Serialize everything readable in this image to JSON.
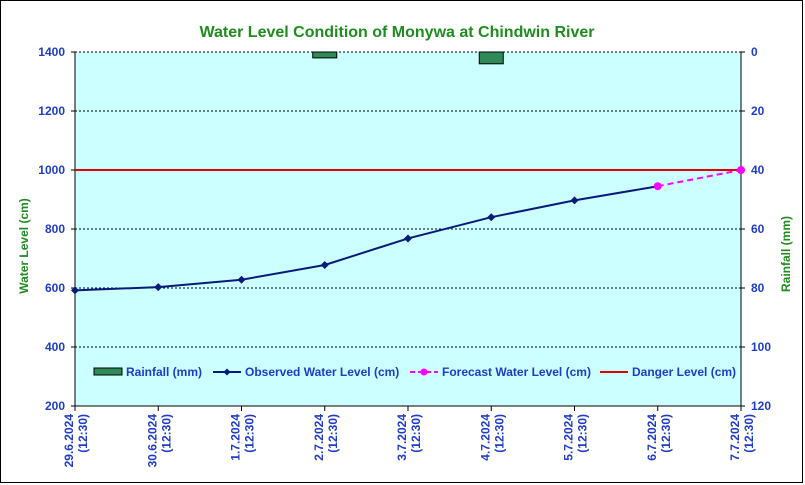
{
  "chart_data": {
    "type": "line",
    "title": "Water Level Condition of Monywa at Chindwin River",
    "ylabel": "Water Level (cm)",
    "y2label": "Rainfall (mm)",
    "ylim": [
      200,
      1400
    ],
    "y2lim": [
      0,
      120
    ],
    "y2_inverted": true,
    "yticks": [
      "1400",
      "1200",
      "1000",
      "800",
      "600",
      "400",
      "200"
    ],
    "y2ticks": [
      "0",
      "20",
      "40",
      "60",
      "80",
      "100",
      "120"
    ],
    "categories": [
      [
        "29.6.2024",
        "(12:30)"
      ],
      [
        "30.6.2024",
        "(12:30)"
      ],
      [
        "1.7.2024",
        "(12:30)"
      ],
      [
        "2.7.2024",
        "(12:30)"
      ],
      [
        "3.7.2024",
        "(12:30)"
      ],
      [
        "4.7.2024",
        "(12:30)"
      ],
      [
        "5.7.2024",
        "(12:30)"
      ],
      [
        "6.7.2024",
        "(12:30)"
      ],
      [
        "7.7.2024",
        "(12:30)"
      ]
    ],
    "series": [
      {
        "name": "Rainfall (mm)",
        "kind": "bar",
        "axis": "right",
        "color": "#2e8b57",
        "values": [
          null,
          null,
          null,
          2,
          null,
          4,
          null,
          null,
          null
        ]
      },
      {
        "name": "Observed Water Level (cm)",
        "kind": "line",
        "color": "#0a1a78",
        "values": [
          592,
          603,
          628,
          678,
          768,
          840,
          897,
          945,
          null
        ]
      },
      {
        "name": "Forecast Water Level (cm)",
        "kind": "dashed",
        "color": "#ff00ff",
        "values": [
          null,
          null,
          null,
          null,
          null,
          null,
          null,
          945,
          1000
        ]
      },
      {
        "name": "Danger Level (cm)",
        "kind": "hline",
        "color": "#e00000",
        "value": 1000
      }
    ],
    "colors": {
      "plot_bg": "#ccffff",
      "grid": "#000000"
    },
    "grid": true,
    "legend_position": "bottom-inside"
  }
}
